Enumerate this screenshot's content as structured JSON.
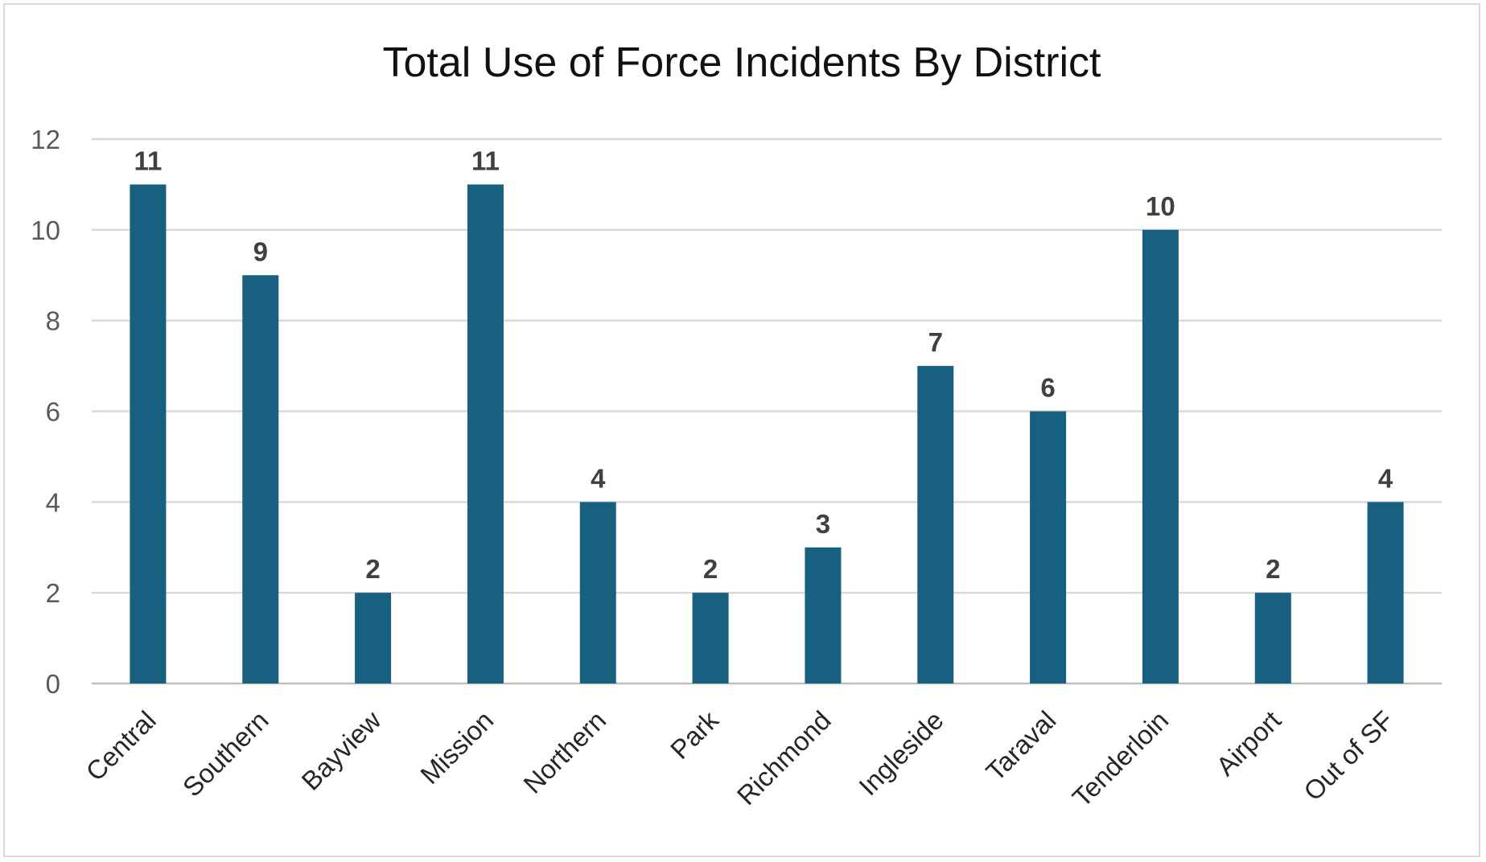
{
  "chart_data": {
    "type": "bar",
    "title": "Total Use of Force Incidents By District",
    "xlabel": "",
    "ylabel": "",
    "categories": [
      "Central",
      "Southern",
      "Bayview",
      "Mission",
      "Northern",
      "Park",
      "Richmond",
      "Ingleside",
      "Taraval",
      "Tenderloin",
      "Airport",
      "Out of SF"
    ],
    "values": [
      11,
      9,
      2,
      11,
      4,
      2,
      3,
      7,
      6,
      10,
      2,
      4
    ],
    "ylim": [
      0,
      12
    ],
    "yticks": [
      "0",
      "2",
      "4",
      "6",
      "8",
      "10",
      "12"
    ],
    "grid": true,
    "data_labels": true,
    "bar_color": "#17607f"
  }
}
